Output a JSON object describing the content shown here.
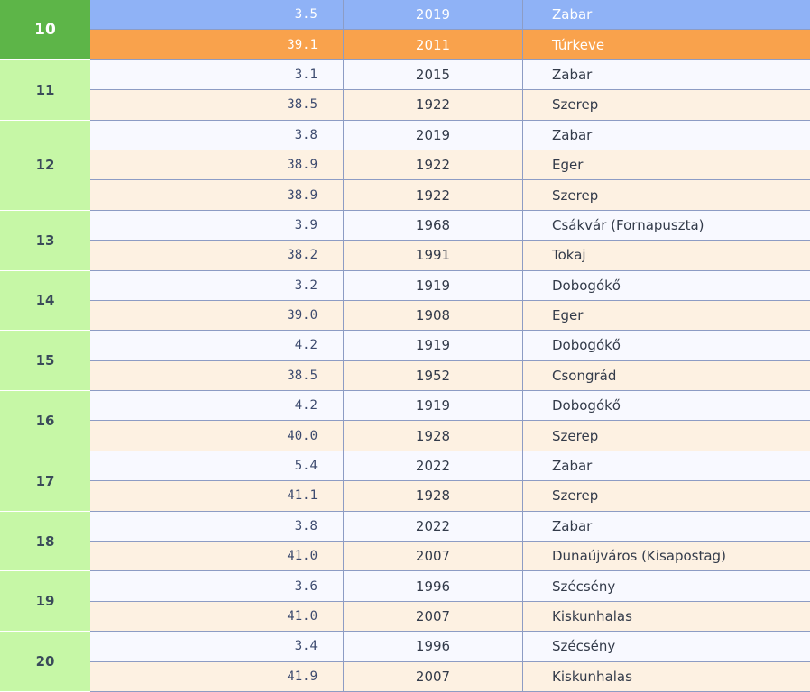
{
  "table": {
    "groups": [
      {
        "day": "10",
        "rows": [
          [
            "3.5",
            "2019",
            "Zabar"
          ],
          [
            "39.1",
            "2011",
            "Túrkeve"
          ]
        ]
      },
      {
        "day": "11",
        "rows": [
          [
            "3.1",
            "2015",
            "Zabar"
          ],
          [
            "38.5",
            "1922",
            "Szerep"
          ]
        ]
      },
      {
        "day": "12",
        "rows": [
          [
            "3.8",
            "2019",
            "Zabar"
          ],
          [
            "38.9",
            "1922",
            "Eger"
          ],
          [
            "38.9",
            "1922",
            "Szerep"
          ]
        ]
      },
      {
        "day": "13",
        "rows": [
          [
            "3.9",
            "1968",
            "Csákvár (Fornapuszta)"
          ],
          [
            "38.2",
            "1991",
            "Tokaj"
          ]
        ]
      },
      {
        "day": "14",
        "rows": [
          [
            "3.2",
            "1919",
            "Dobogókő"
          ],
          [
            "39.0",
            "1908",
            "Eger"
          ]
        ]
      },
      {
        "day": "15",
        "rows": [
          [
            "4.2",
            "1919",
            "Dobogókő"
          ],
          [
            "38.5",
            "1952",
            "Csongrád"
          ]
        ]
      },
      {
        "day": "16",
        "rows": [
          [
            "4.2",
            "1919",
            "Dobogókő"
          ],
          [
            "40.0",
            "1928",
            "Szerep"
          ]
        ]
      },
      {
        "day": "17",
        "rows": [
          [
            "5.4",
            "2022",
            "Zabar"
          ],
          [
            "41.1",
            "1928",
            "Szerep"
          ]
        ]
      },
      {
        "day": "18",
        "rows": [
          [
            "3.8",
            "2022",
            "Zabar"
          ],
          [
            "41.0",
            "2007",
            "Dunaújváros (Kisapostag)"
          ]
        ]
      },
      {
        "day": "19",
        "rows": [
          [
            "3.6",
            "1996",
            "Szécsény"
          ],
          [
            "41.0",
            "2007",
            "Kiskunhalas"
          ]
        ]
      },
      {
        "day": "20",
        "rows": [
          [
            "3.4",
            "1996",
            "Szécsény"
          ],
          [
            "41.9",
            "2007",
            "Kiskunhalas"
          ]
        ]
      }
    ]
  }
}
